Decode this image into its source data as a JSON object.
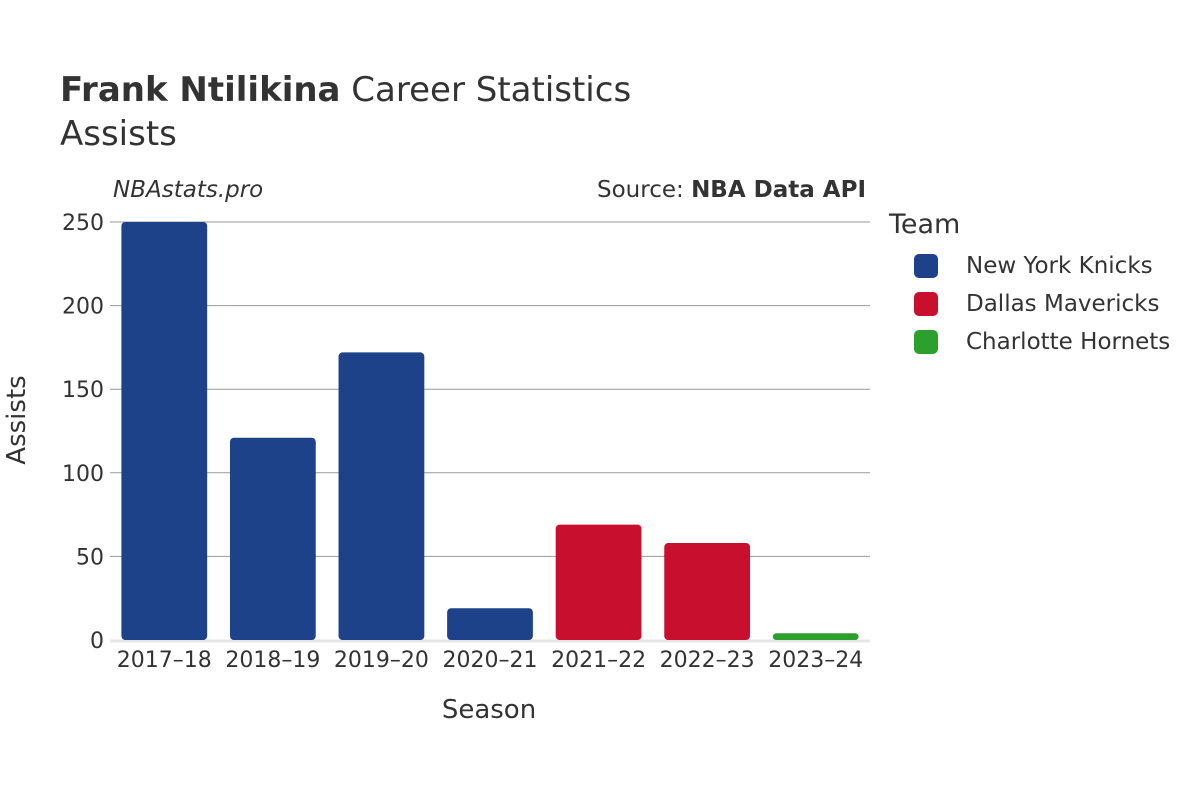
{
  "header": {
    "title_name": "Frank Ntilikina",
    "title_rest": " Career Statistics",
    "subtitle": "Assists",
    "watermark": "NBAstats.pro",
    "source_prefix": "Source: ",
    "source_name": "NBA Data API"
  },
  "legend": {
    "title": "Team",
    "items": [
      {
        "label": "New York Knicks",
        "color": "#1d428a"
      },
      {
        "label": "Dallas Mavericks",
        "color": "#c8102e"
      },
      {
        "label": "Charlotte Hornets",
        "color": "#2ca02c"
      }
    ]
  },
  "chart_data": {
    "type": "bar",
    "title": "Frank Ntilikina Career Statistics",
    "subtitle": "Assists",
    "xlabel": "Season",
    "ylabel": "Assists",
    "categories": [
      "2017–18",
      "2018–19",
      "2019–20",
      "2020–21",
      "2021–22",
      "2022–23",
      "2023–24"
    ],
    "values": [
      250,
      121,
      172,
      19,
      69,
      58,
      4
    ],
    "teams": [
      "New York Knicks",
      "New York Knicks",
      "New York Knicks",
      "New York Knicks",
      "Dallas Mavericks",
      "Dallas Mavericks",
      "Charlotte Hornets"
    ],
    "ylim": [
      0,
      250
    ],
    "yticks": [
      0,
      50,
      100,
      150,
      200,
      250
    ],
    "grid": true,
    "legend_position": "right"
  }
}
